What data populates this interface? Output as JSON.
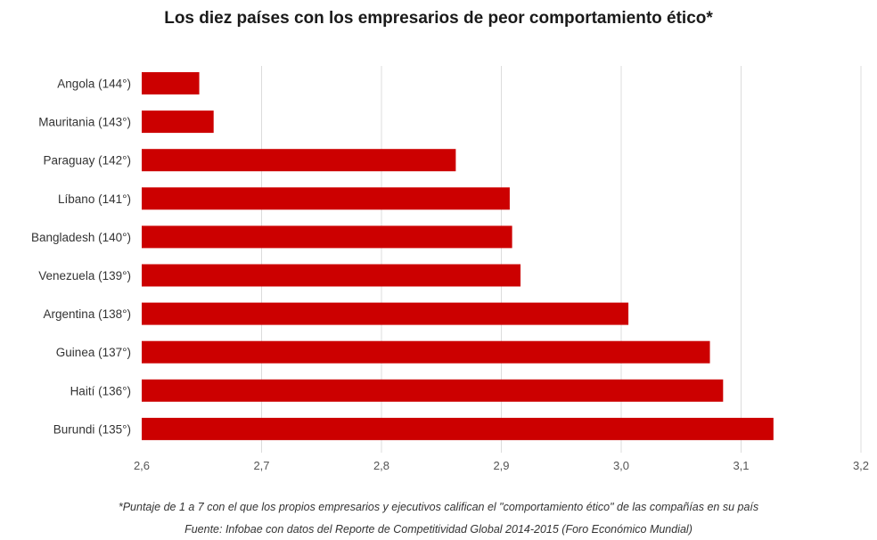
{
  "title": "Los diez países con los empresarios de peor comportamiento ético*",
  "footnote": "*Puntaje de 1 a 7 con el que los propios empresarios y ejecutivos califican el \"comportamiento ético\" de las  compañías en su país",
  "source": "Fuente: Infobae con datos del Reporte de Competitividad Global 2014-2015 (Foro Económico Mundial)",
  "colors": {
    "bar": "#cc0000",
    "grid": "#dcdcdc",
    "tick_text": "#555555",
    "label_text": "#333333"
  },
  "chart_data": {
    "type": "bar",
    "orientation": "horizontal",
    "title": "Los diez países con los empresarios de peor comportamiento ético*",
    "categories": [
      "Angola (144°)",
      "Mauritania (143°)",
      "Paraguay (142°)",
      "Líbano (141°)",
      "Bangladesh (140°)",
      "Venezuela (139°)",
      "Argentina (138°)",
      "Guinea (137°)",
      "Haití (136°)",
      "Burundi (135°)"
    ],
    "values": [
      2.648,
      2.66,
      2.862,
      2.907,
      2.909,
      2.916,
      3.006,
      3.074,
      3.085,
      3.127
    ],
    "xlim": [
      2.6,
      3.2
    ],
    "xticks": [
      "2,6",
      "2,7",
      "2,8",
      "2,9",
      "3,0",
      "3,1",
      "3,2"
    ],
    "grid": "vertical",
    "legend": "none"
  }
}
